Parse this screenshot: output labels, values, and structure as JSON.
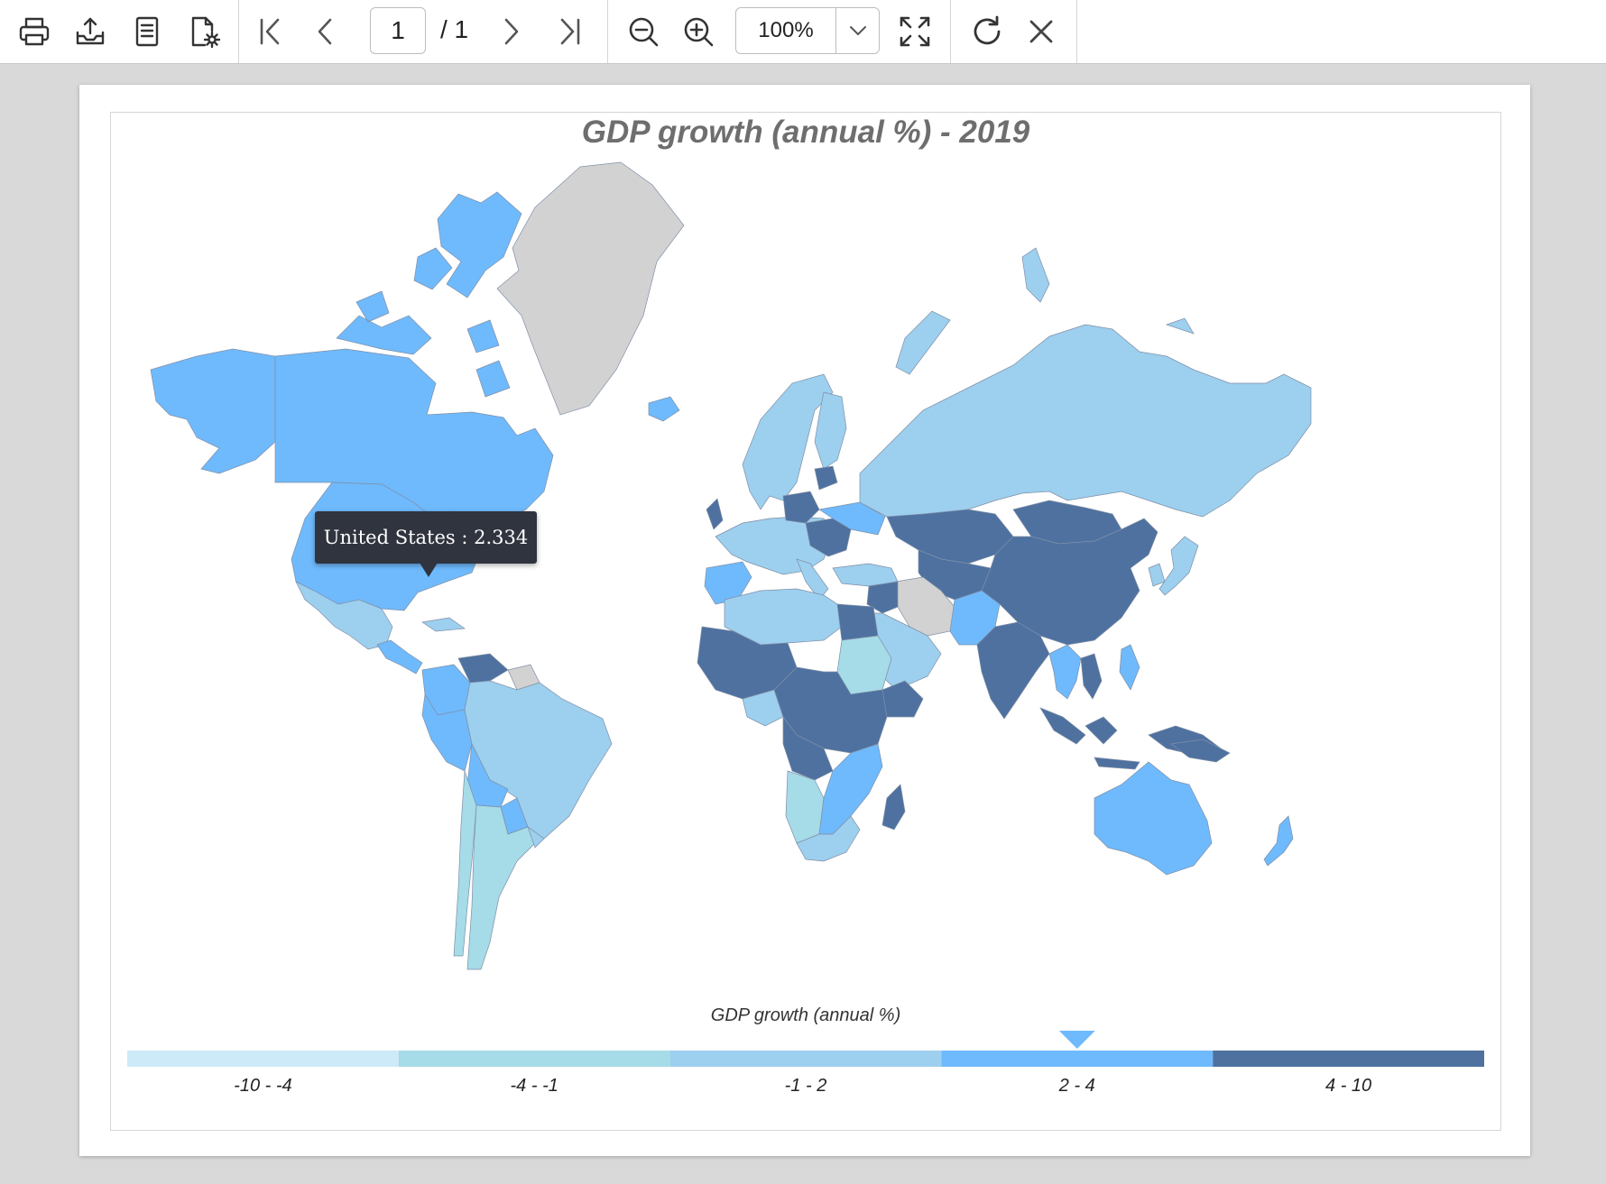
{
  "toolbar": {
    "page_current": "1",
    "page_total": "/ 1",
    "zoom": "100%",
    "buttons": [
      "print-icon",
      "export-icon",
      "document-icon",
      "page-setup-icon",
      "first-page-icon",
      "previous-page-icon",
      "next-page-icon",
      "last-page-icon",
      "zoom-out-icon",
      "zoom-in-icon",
      "fit-page-icon",
      "refresh-icon",
      "close-icon"
    ]
  },
  "map": {
    "title": "GDP growth (annual %) - 2019",
    "legend": {
      "title": "GDP growth (annual %)",
      "ranges": [
        {
          "label": "-10 - -4",
          "color": "#cdeaf8"
        },
        {
          "label": "-4 - -1",
          "color": "#a6dbe8"
        },
        {
          "label": "-1 - 2",
          "color": "#9dcfee"
        },
        {
          "label": "2 - 4",
          "color": "#6fbafd"
        },
        {
          "label": "4 - 10",
          "color": "#4e71a0"
        }
      ],
      "pointer_range": "2 - 4"
    },
    "no_data_color": "#d2d2d2",
    "tooltip": "United States : 2.334"
  }
}
